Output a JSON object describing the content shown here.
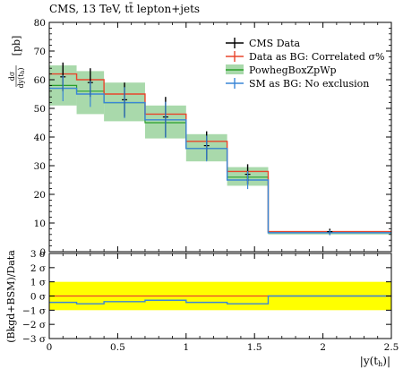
{
  "chart_data": [
    {
      "type": "line",
      "title": "CMS, 13 TeV, tt̄ lepton+jets",
      "ylabel_num": "dσ",
      "ylabel_den": "dy(t",
      "ylabel_unit": "[pb]",
      "xlim": [
        0,
        2.5
      ],
      "ylim": [
        0,
        80
      ],
      "xticks": [
        0,
        0.5,
        1,
        1.5,
        2,
        2.5
      ],
      "xtick_labels": [
        "0",
        "0.5",
        "1",
        "1.5",
        "2",
        "2.5"
      ],
      "yticks": [
        0,
        10,
        20,
        30,
        40,
        50,
        60,
        70,
        80
      ],
      "ytick_labels": [
        "0",
        "10",
        "20",
        "30",
        "40",
        "50",
        "60",
        "70",
        "80"
      ],
      "bin_edges": [
        0,
        0.2,
        0.4,
        0.7,
        1.0,
        1.3,
        1.6,
        2.5
      ],
      "series": [
        {
          "name": "CMS Data",
          "kind": "data",
          "color": "#000000",
          "x": [
            0.1,
            0.3,
            0.55,
            0.85,
            1.15,
            1.45,
            2.05
          ],
          "y": [
            61,
            59,
            53,
            47,
            37,
            27,
            7
          ],
          "err": [
            5,
            5,
            6,
            7,
            5,
            3.5,
            1
          ]
        },
        {
          "name": "Data as BG: Correlated σ%",
          "kind": "step",
          "color": "#e8452c",
          "values": [
            62,
            60,
            55,
            48,
            38.5,
            28,
            7
          ]
        },
        {
          "name": "PowhegBoxZpWp",
          "kind": "band",
          "color": "#2aa02b",
          "fill": "#a9d9ab",
          "values": [
            58,
            56,
            52,
            45,
            36,
            26,
            6.6
          ],
          "lo": [
            51,
            48,
            45.5,
            39.5,
            31.5,
            23,
            6
          ],
          "hi": [
            65,
            63,
            59,
            51,
            41,
            29.5,
            7.2
          ]
        },
        {
          "name": "SM as BG: No exclusion",
          "kind": "step",
          "color": "#3a86d6",
          "values": [
            57,
            55,
            52,
            46,
            36,
            25,
            6.6
          ]
        }
      ],
      "legend_position": "top-right"
    },
    {
      "type": "line",
      "ylabel": "(Bkgd+BSM)/Data",
      "xlabel": "|y(t",
      "xlabel_sub": "h",
      "ylim": [
        -3,
        3
      ],
      "yticks": [
        3,
        2,
        1,
        0,
        -1,
        -2,
        -3
      ],
      "ytick_labels": [
        "3 σ",
        "2 σ",
        "1 σ",
        "0 σ",
        "−1 σ",
        "−2 σ",
        "−3 σ"
      ],
      "band_1sigma": {
        "color": "#ffff00",
        "lo": -1,
        "hi": 1
      },
      "zero_line_color": "#e8452c",
      "series": [
        {
          "name": "SM as BG: No exclusion",
          "color": "#3a86d6",
          "values": [
            -0.45,
            -0.55,
            -0.4,
            -0.3,
            -0.45,
            -0.55,
            0
          ]
        }
      ]
    }
  ],
  "misc": {
    "den_sub": "h",
    "den_tail": ")"
  }
}
